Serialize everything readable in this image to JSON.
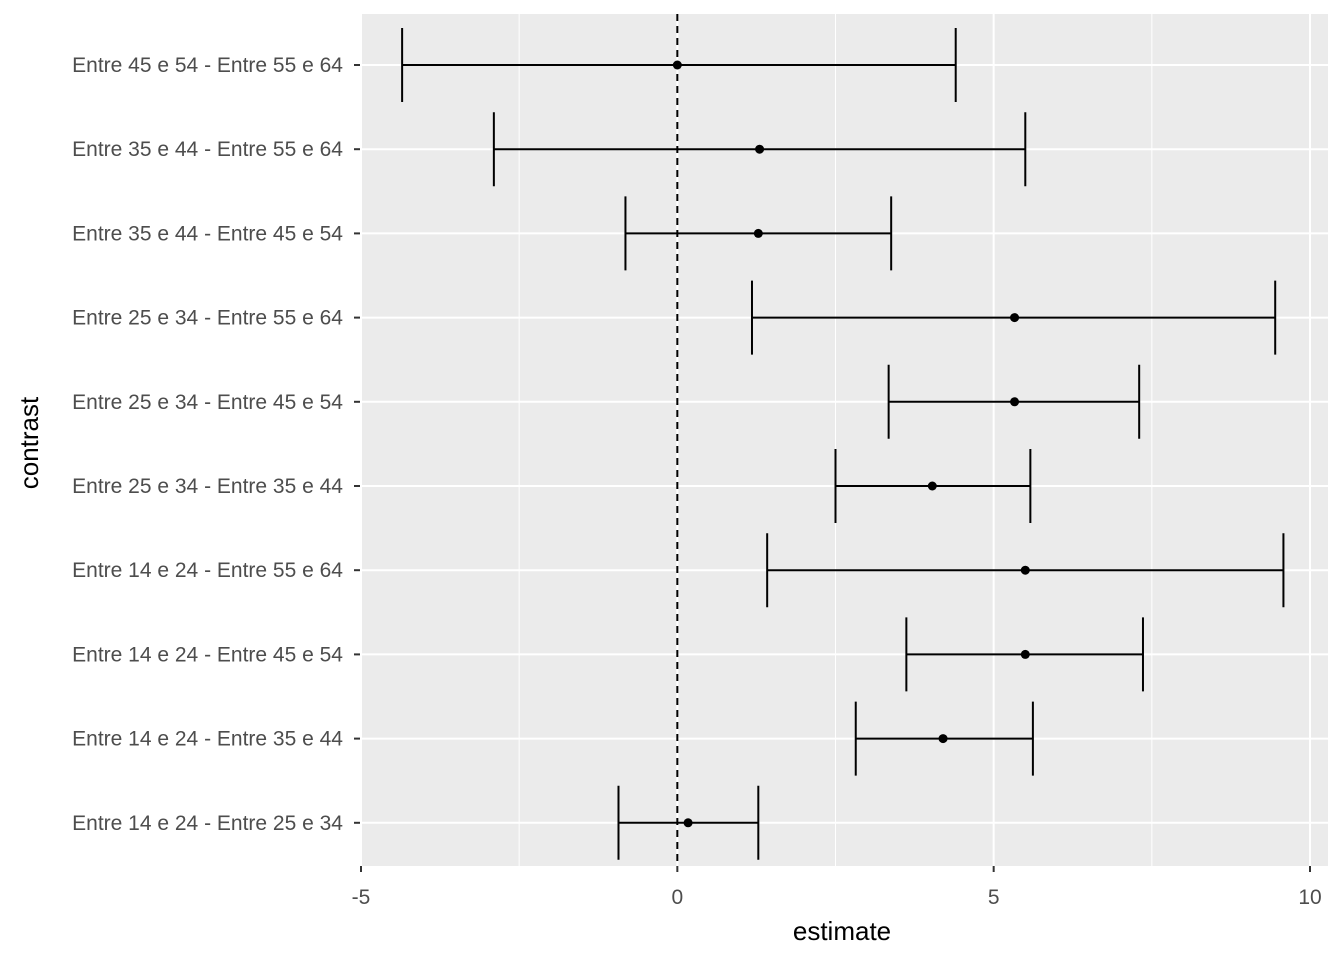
{
  "chart_data": {
    "type": "errorbar",
    "xlabel": "estimate",
    "ylabel": "contrast",
    "xlim": [
      -5,
      10
    ],
    "x_ticks": [
      -5,
      0,
      5,
      10
    ],
    "x_tick_labels": [
      "-5",
      "0",
      "5",
      "10"
    ],
    "reference_line": {
      "x": 0,
      "style": "dashed"
    },
    "grid": true,
    "panel_background": "#ebebeb",
    "grid_color": "#ffffff",
    "mark_color": "#000000",
    "categories": [
      "Entre 45 e 54 - Entre 55 e 64",
      "Entre 35 e 44 - Entre 55 e 64",
      "Entre 35 e 44 - Entre 45 e 54",
      "Entre 25 e 34 - Entre 55 e 64",
      "Entre 25 e 34 - Entre 45 e 54",
      "Entre 25 e 34 - Entre 35 e 44",
      "Entre 14 e 24 - Entre 55 e 64",
      "Entre 14 e 24 - Entre 45 e 54",
      "Entre 14 e 24 - Entre 35 e 44",
      "Entre 14 e 24 - Entre 25 e 34"
    ],
    "estimates": [
      0.0,
      1.3,
      1.28,
      5.33,
      5.33,
      4.03,
      5.5,
      5.5,
      4.2,
      0.17
    ],
    "lower": [
      -4.35,
      -2.9,
      -0.82,
      1.18,
      3.34,
      2.5,
      1.42,
      3.62,
      2.82,
      -0.93
    ],
    "upper": [
      4.4,
      5.5,
      3.38,
      9.45,
      7.3,
      5.58,
      9.58,
      7.36,
      5.62,
      1.28
    ]
  }
}
